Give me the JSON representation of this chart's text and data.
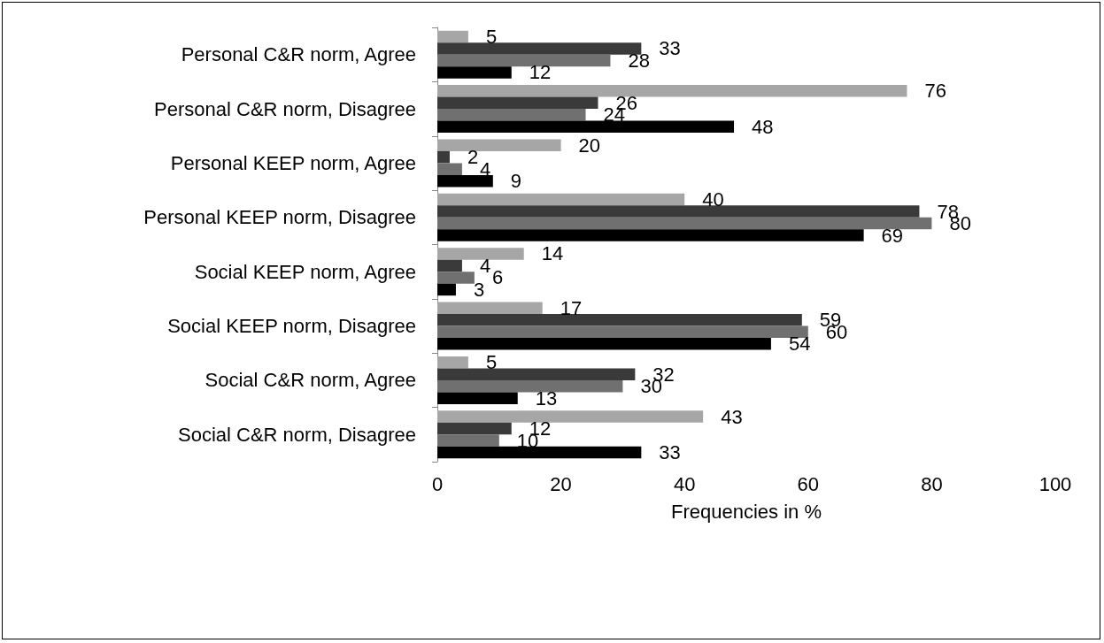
{
  "chart_data": {
    "type": "bar",
    "orientation": "horizontal",
    "xlabel": "Frequencies in %",
    "categories": [
      "Personal C&R norm, Agree",
      "Personal C&R norm, Disagree",
      "Personal KEEP norm, Agree",
      "Personal KEEP norm, Disagree",
      "Social KEEP norm, Agree",
      "Social KEEP norm, Disagree",
      "Social C&R norm, Agree",
      "Social C&R norm, Disagree"
    ],
    "series": [
      {
        "color": "#a6a6a6",
        "values": [
          5,
          76,
          20,
          40,
          14,
          17,
          5,
          43
        ]
      },
      {
        "color": "#3a3a3a",
        "values": [
          33,
          26,
          2,
          78,
          4,
          59,
          32,
          12
        ]
      },
      {
        "color": "#707070",
        "values": [
          28,
          24,
          4,
          80,
          6,
          60,
          30,
          10
        ]
      },
      {
        "color": "#000000",
        "values": [
          12,
          48,
          9,
          69,
          3,
          54,
          13,
          33
        ]
      }
    ],
    "xlim": [
      0,
      100
    ],
    "xticks": [
      0,
      20,
      40,
      60,
      80,
      100
    ],
    "grid": false,
    "data_labels": true
  }
}
